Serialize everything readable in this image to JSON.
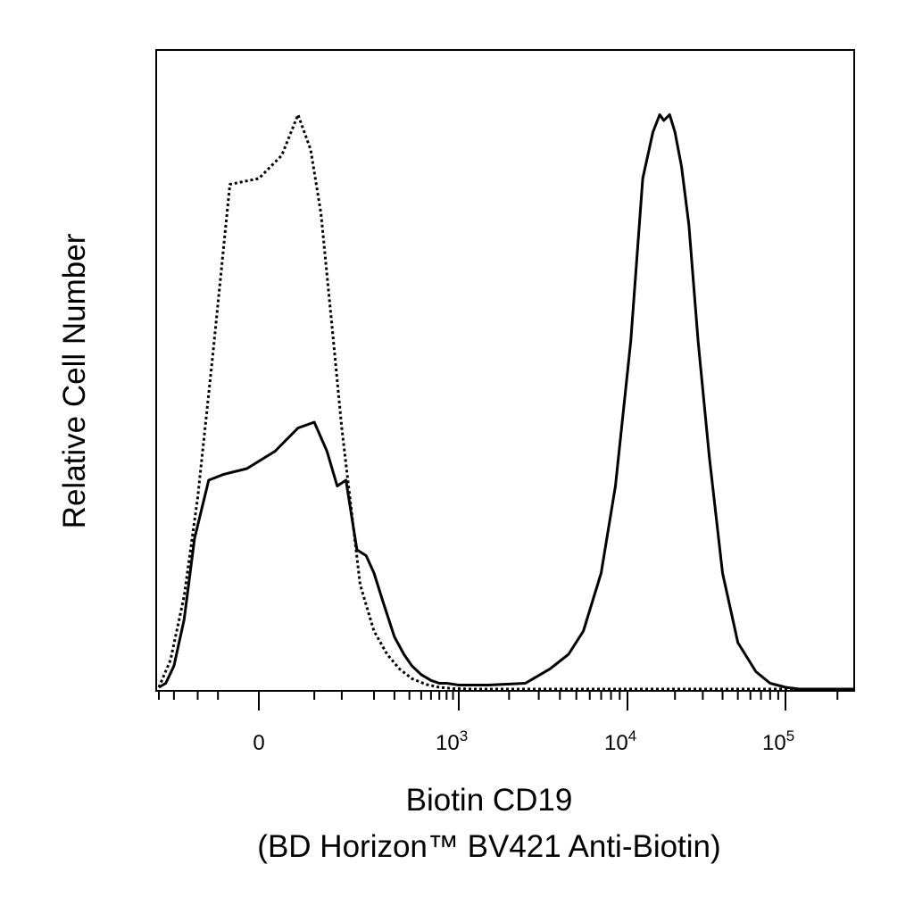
{
  "chart_data": {
    "type": "line",
    "title": "",
    "xlabel_line1": "Biotin CD19",
    "xlabel_line2": "(BD Horizon™ BV421 Anti-Biotin)",
    "ylabel": "Relative Cell Number",
    "x_scale": "biexponential (logicle)",
    "xlim": [
      -300,
      250000
    ],
    "ylim": [
      0,
      1
    ],
    "grid": false,
    "legend": "none",
    "x_tick_labels": [
      {
        "value": 0,
        "base": "0",
        "exp": ""
      },
      {
        "value": 1000,
        "base": "10",
        "exp": "3"
      },
      {
        "value": 10000,
        "base": "10",
        "exp": "4"
      },
      {
        "value": 100000,
        "base": "10",
        "exp": "5"
      }
    ],
    "series": [
      {
        "style": "dotted",
        "x": [
          -300,
          -220,
          -150,
          -100,
          -60,
          -30,
          0,
          15,
          30,
          45,
          60,
          80,
          100,
          120,
          150,
          200,
          260,
          330,
          420,
          550,
          700,
          900,
          1200,
          3000,
          30000,
          250000
        ],
        "y": [
          0.003,
          0.05,
          0.16,
          0.33,
          0.58,
          0.87,
          0.88,
          0.92,
          0.99,
          0.93,
          0.82,
          0.62,
          0.45,
          0.33,
          0.18,
          0.1,
          0.06,
          0.035,
          0.018,
          0.008,
          0.003,
          0.001,
          0.0,
          0.0,
          0.0,
          0.0
        ]
      },
      {
        "style": "solid",
        "x": [
          -300,
          -250,
          -200,
          -150,
          -110,
          -70,
          -40,
          -10,
          10,
          30,
          50,
          70,
          90,
          110,
          140,
          170,
          200,
          240,
          300,
          360,
          420,
          500,
          600,
          700,
          800,
          1000,
          1500,
          2500,
          3500,
          4500,
          5500,
          7000,
          8500,
          10500,
          12500,
          14500,
          16000,
          17000,
          18500,
          20000,
          22000,
          24500,
          28000,
          33000,
          40000,
          50000,
          65000,
          80000,
          100000,
          120000,
          250000
        ],
        "y": [
          0.003,
          0.01,
          0.04,
          0.12,
          0.26,
          0.36,
          0.37,
          0.38,
          0.41,
          0.45,
          0.46,
          0.41,
          0.35,
          0.36,
          0.24,
          0.23,
          0.2,
          0.15,
          0.09,
          0.06,
          0.04,
          0.025,
          0.015,
          0.01,
          0.01,
          0.007,
          0.007,
          0.01,
          0.035,
          0.06,
          0.1,
          0.2,
          0.35,
          0.6,
          0.88,
          0.96,
          0.99,
          0.98,
          0.99,
          0.96,
          0.9,
          0.8,
          0.6,
          0.4,
          0.2,
          0.08,
          0.03,
          0.01,
          0.003,
          0.0,
          0.0
        ]
      }
    ]
  }
}
